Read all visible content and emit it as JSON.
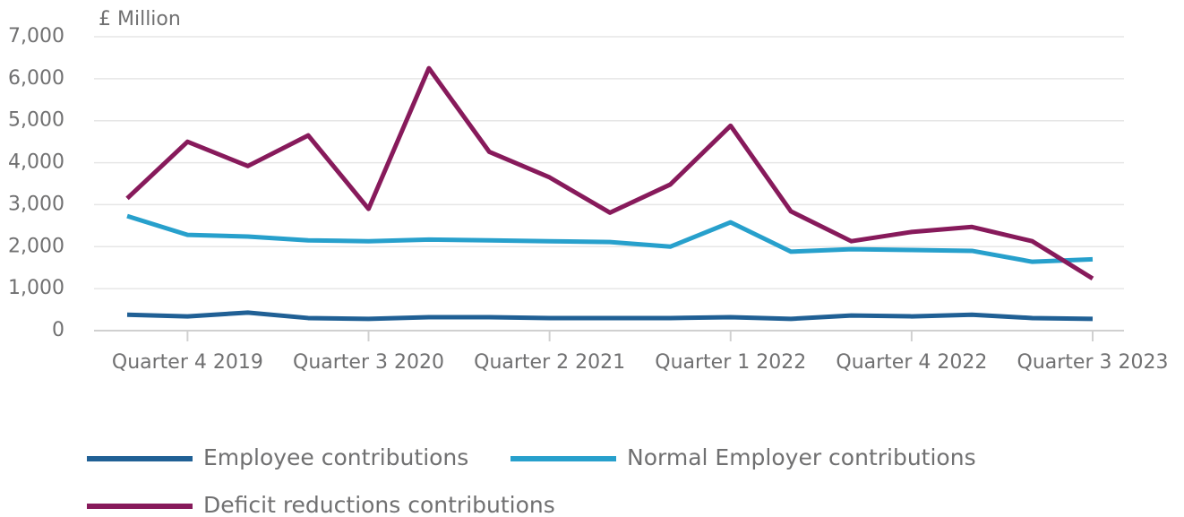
{
  "chart_data": {
    "type": "line",
    "y_axis_label": "£ Million",
    "categories": [
      null,
      "Quarter 4 2019",
      null,
      null,
      "Quarter 3 2020",
      null,
      null,
      "Quarter 2 2021",
      null,
      null,
      "Quarter 1 2022",
      null,
      null,
      "Quarter 4 2022",
      null,
      null,
      "Quarter 3 2023"
    ],
    "series": [
      {
        "name": "Employee contributions",
        "color": "#206095",
        "values": [
          380,
          340,
          430,
          300,
          280,
          320,
          320,
          300,
          300,
          300,
          320,
          280,
          360,
          340,
          380,
          300,
          280
        ]
      },
      {
        "name": "Normal Employer contributions",
        "color": "#27a0cc",
        "values": [
          2730,
          2280,
          2240,
          2150,
          2130,
          2170,
          2150,
          2130,
          2110,
          2000,
          2580,
          1880,
          1940,
          1920,
          1900,
          1640,
          1700
        ]
      },
      {
        "name": "Deficit reductions contributions",
        "color": "#871a5b",
        "values": [
          3150,
          4500,
          3920,
          4650,
          2900,
          6250,
          4260,
          3650,
          2810,
          3480,
          4880,
          2840,
          2130,
          2350,
          2470,
          2130,
          1240
        ]
      }
    ],
    "ylim": [
      0,
      7000
    ],
    "yticks": [
      0,
      {
        "value": 1000,
        "label": "1,000"
      },
      {
        "value": 2000,
        "label": "2,000"
      },
      {
        "value": 3000,
        "label": "3,000"
      },
      {
        "value": 4000,
        "label": "4,000"
      },
      {
        "value": 5000,
        "label": "5,000"
      },
      {
        "value": 6000,
        "label": "6,000"
      },
      {
        "value": 7000,
        "label": "7,000"
      }
    ],
    "grid": true
  }
}
